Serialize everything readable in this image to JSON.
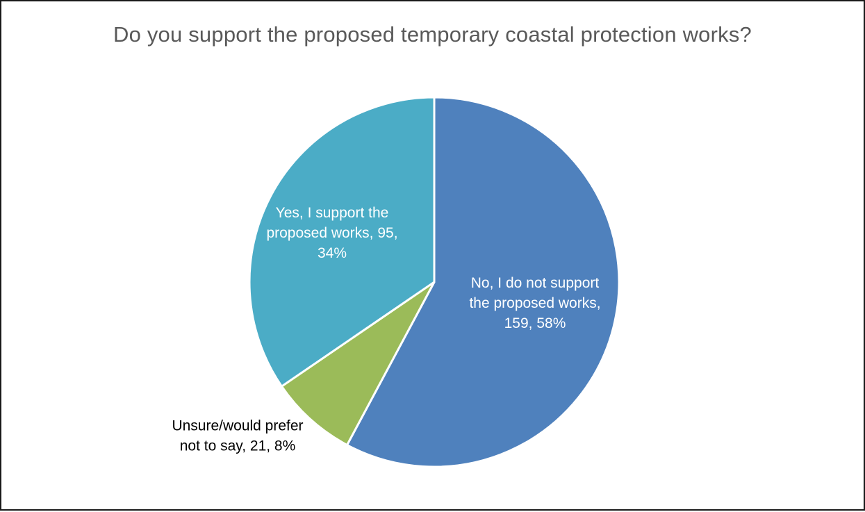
{
  "chart_data": {
    "type": "pie",
    "title": "Do you support the proposed temporary coastal protection works?",
    "start_angle_deg": 0,
    "direction": "clockwise",
    "slices": [
      {
        "name": "No, I do not support the proposed works",
        "value": 159,
        "percent": 58,
        "color": "#4F81BD",
        "label_color": "#FFFFFF",
        "label_lines": [
          "No, I do not support",
          "the proposed works,",
          "159, 58%"
        ]
      },
      {
        "name": "Unsure/would prefer not to say",
        "value": 21,
        "percent": 8,
        "color": "#9BBB59",
        "label_color": "#000000",
        "label_lines": [
          "Unsure/would prefer",
          "not to say, 21, 8%"
        ]
      },
      {
        "name": "Yes, I support the proposed works",
        "value": 95,
        "percent": 34,
        "color": "#4BACC6",
        "label_color": "#FFFFFF",
        "label_lines": [
          "Yes, I support the",
          "proposed works, 95,",
          "34%"
        ]
      }
    ]
  }
}
